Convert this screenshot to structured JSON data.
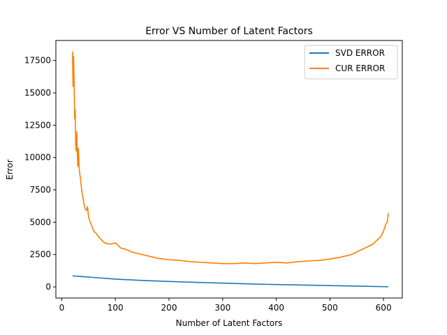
{
  "chart_data": {
    "type": "line",
    "title": "Error VS Number of Latent Factors",
    "xlabel": "Number of Latent Factors",
    "ylabel": "Error",
    "xlim": [
      -11,
      635
    ],
    "ylim": [
      -860,
      19050
    ],
    "xticks": [
      0,
      100,
      200,
      300,
      400,
      500,
      600
    ],
    "yticks": [
      0,
      2500,
      5000,
      7500,
      10000,
      12500,
      15000,
      17500
    ],
    "grid": false,
    "legend": "top-right",
    "series": [
      {
        "name": "SVD ERROR",
        "color": "#1f77b4",
        "x": [
          20,
          50,
          100,
          150,
          200,
          250,
          300,
          350,
          400,
          450,
          500,
          550,
          609
        ],
        "y": [
          850,
          760,
          600,
          500,
          420,
          350,
          290,
          230,
          180,
          140,
          100,
          60,
          10
        ]
      },
      {
        "name": "CUR ERROR",
        "color": "#ff7f00",
        "x": [
          20,
          21,
          22,
          23,
          24,
          25,
          26,
          27,
          28,
          29,
          30,
          31,
          32,
          33,
          34,
          35,
          36,
          38,
          40,
          42,
          44,
          46,
          48,
          50,
          53,
          56,
          60,
          65,
          70,
          75,
          80,
          90,
          100,
          110,
          120,
          130,
          140,
          150,
          160,
          180,
          200,
          220,
          240,
          260,
          280,
          300,
          320,
          340,
          360,
          380,
          400,
          420,
          440,
          460,
          480,
          500,
          520,
          540,
          550,
          560,
          570,
          580,
          590,
          595,
          600,
          603,
          605,
          607,
          609
        ],
        "y": [
          18200,
          15500,
          17800,
          16000,
          13000,
          13700,
          11000,
          10500,
          12000,
          10300,
          9300,
          10700,
          9600,
          8900,
          8600,
          8400,
          7900,
          7200,
          6800,
          6300,
          6000,
          5900,
          6200,
          5400,
          5000,
          4700,
          4300,
          4100,
          3800,
          3600,
          3400,
          3300,
          3400,
          3000,
          2900,
          2700,
          2600,
          2500,
          2400,
          2200,
          2100,
          2050,
          1950,
          1900,
          1850,
          1800,
          1800,
          1850,
          1800,
          1850,
          1900,
          1850,
          1950,
          2000,
          2050,
          2150,
          2300,
          2500,
          2700,
          2900,
          3100,
          3300,
          3700,
          3900,
          4300,
          4700,
          4900,
          5000,
          5700
        ]
      }
    ]
  }
}
